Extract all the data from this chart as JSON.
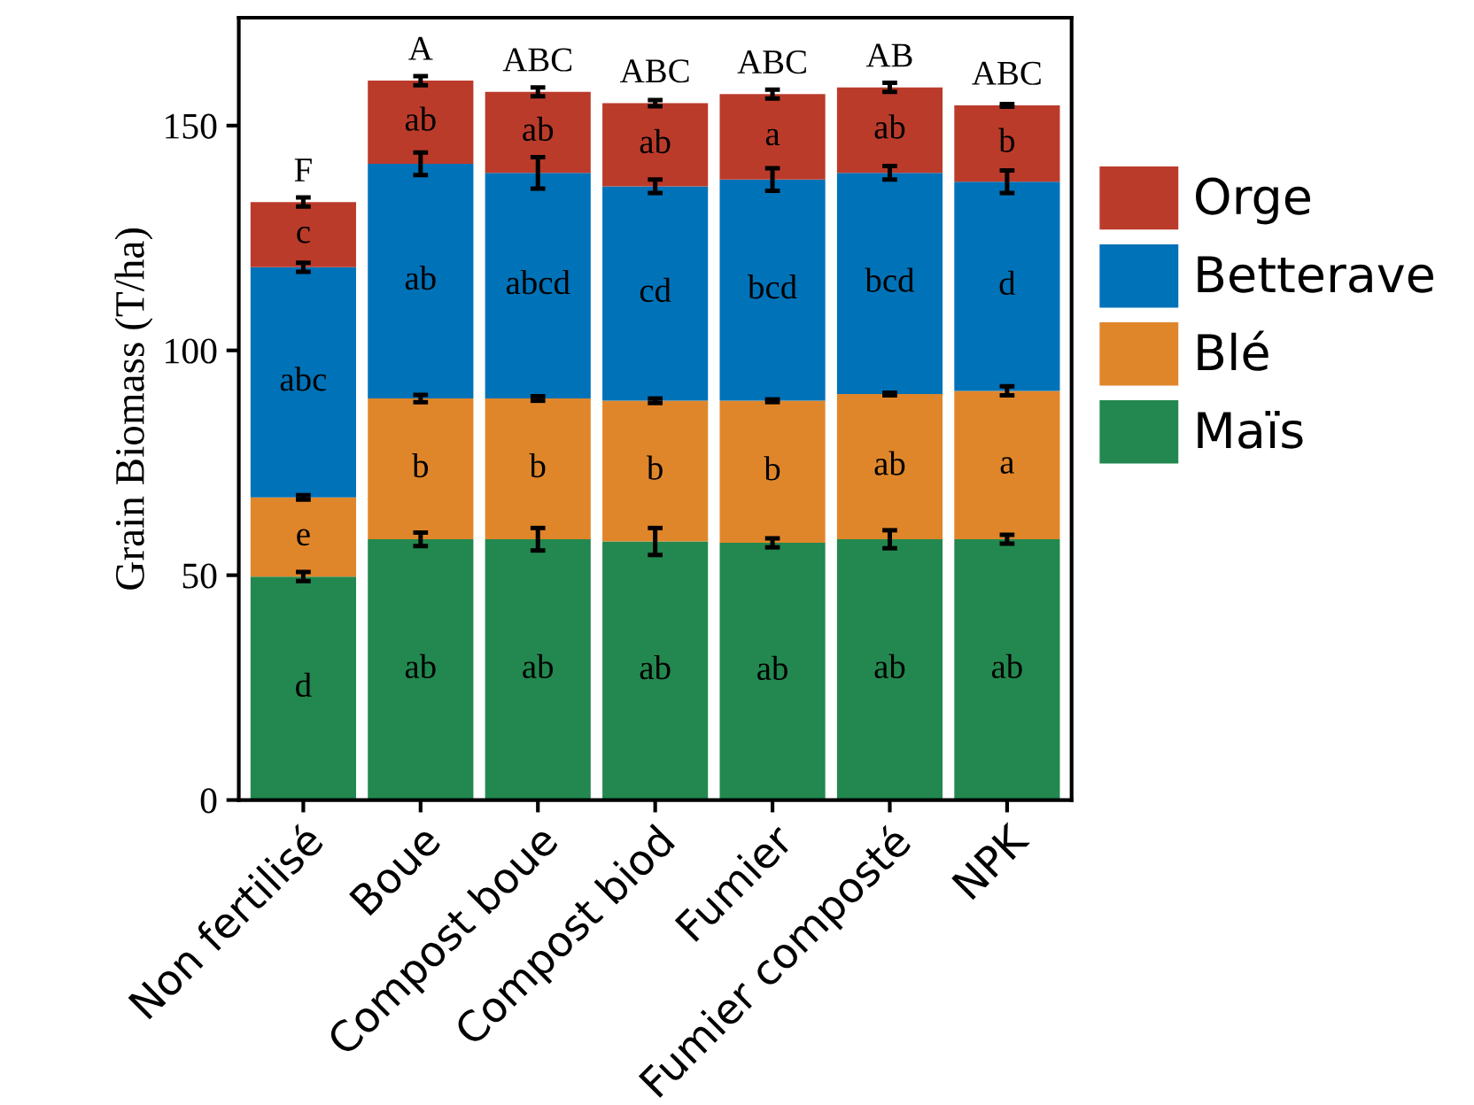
{
  "chart_data": {
    "type": "bar",
    "stacked": true,
    "ylabel": "Grain Biomass (T/ha)",
    "categories": [
      "Non fertilisé",
      "Boue",
      "Compost boue",
      "Compost biod",
      "Fumier",
      "Fumier composté",
      "NPK"
    ],
    "series": [
      {
        "name": "Maïs",
        "color": "#22884f",
        "values": [
          49.7,
          58,
          58,
          57.5,
          57.2,
          58,
          58
        ],
        "errors": [
          1,
          1.5,
          2.5,
          3,
          1,
          2,
          1
        ],
        "value_labels": [
          "d",
          "ab",
          "ab",
          "ab",
          "ab",
          "ab",
          "ab"
        ]
      },
      {
        "name": "Blé",
        "color": "#e0862a",
        "values": [
          17.6,
          31.3,
          31.3,
          31.3,
          31.6,
          32.3,
          33
        ],
        "errors": [
          0.5,
          0.8,
          0.5,
          0.5,
          0.3,
          0.3,
          1
        ],
        "value_labels": [
          "e",
          "b",
          "b",
          "b",
          "b",
          "ab",
          "a"
        ]
      },
      {
        "name": "Betterave",
        "color": "#0072b8",
        "values": [
          51.2,
          52.2,
          50.2,
          47.7,
          49.2,
          49.2,
          46.5
        ],
        "errors": [
          1,
          2.5,
          3.5,
          1.5,
          2.5,
          1.5,
          2.5
        ],
        "value_labels": [
          "abc",
          "ab",
          "abcd",
          "cd",
          "bcd",
          "bcd",
          "d"
        ]
      },
      {
        "name": "Orge",
        "color": "#bb3b2b",
        "values": [
          14.5,
          18.5,
          18,
          18.5,
          19,
          19,
          17
        ],
        "errors": [
          1,
          1,
          1,
          0.7,
          1,
          1,
          0.3
        ],
        "value_labels": [
          "c",
          "ab",
          "ab",
          "ab",
          "a",
          "ab",
          "b"
        ]
      }
    ],
    "totals": [
      "F",
      "A",
      "ABC",
      "ABC",
      "ABC",
      "AB",
      "ABC"
    ],
    "ylim": [
      0,
      174
    ],
    "yticks": [
      0,
      50,
      100,
      150
    ],
    "grid": false,
    "legend": "right"
  }
}
